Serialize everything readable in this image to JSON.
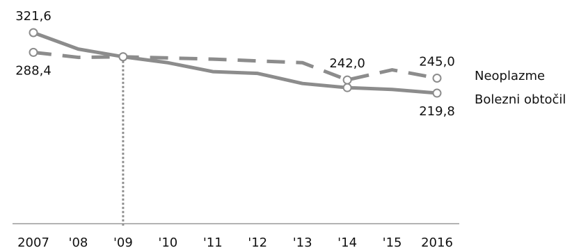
{
  "chart_data": {
    "type": "line",
    "categories": [
      "2007",
      "'08",
      "'09",
      "'10",
      "'11",
      "'12",
      "'13",
      "'14",
      "'15",
      "2016"
    ],
    "series": [
      {
        "name": "Neoplazme",
        "style": "dashed",
        "values": [
          288.4,
          280.0,
          281.0,
          279.0,
          277.0,
          274.0,
          271.0,
          242.0,
          259.0,
          245.0
        ]
      },
      {
        "name": "Bolezni obtočil",
        "style": "solid",
        "values": [
          321.6,
          294.0,
          281.0,
          271.0,
          256.0,
          253.0,
          236.0,
          229.0,
          226.0,
          219.8
        ]
      }
    ],
    "data_labels": [
      {
        "series": 1,
        "index": 0,
        "text": "321,6",
        "position": "above"
      },
      {
        "series": 0,
        "index": 0,
        "text": "288,4",
        "position": "below"
      },
      {
        "series": 0,
        "index": 7,
        "text": "242,0",
        "position": "above"
      },
      {
        "series": 0,
        "index": 9,
        "text": "245,0",
        "position": "above"
      },
      {
        "series": 1,
        "index": 9,
        "text": "219,8",
        "position": "below"
      }
    ],
    "marker_indices": [
      0,
      2,
      7,
      9
    ],
    "reference_line_index": 2,
    "ylim": [
      0,
      360
    ],
    "grid": false,
    "legend": "right",
    "colors": {
      "line": "#8c8c8c",
      "axis": "#9a9a9a",
      "marker_fill": "#ffffff",
      "reference": "#8c8c8c"
    },
    "title": "",
    "xlabel": "",
    "ylabel": ""
  }
}
